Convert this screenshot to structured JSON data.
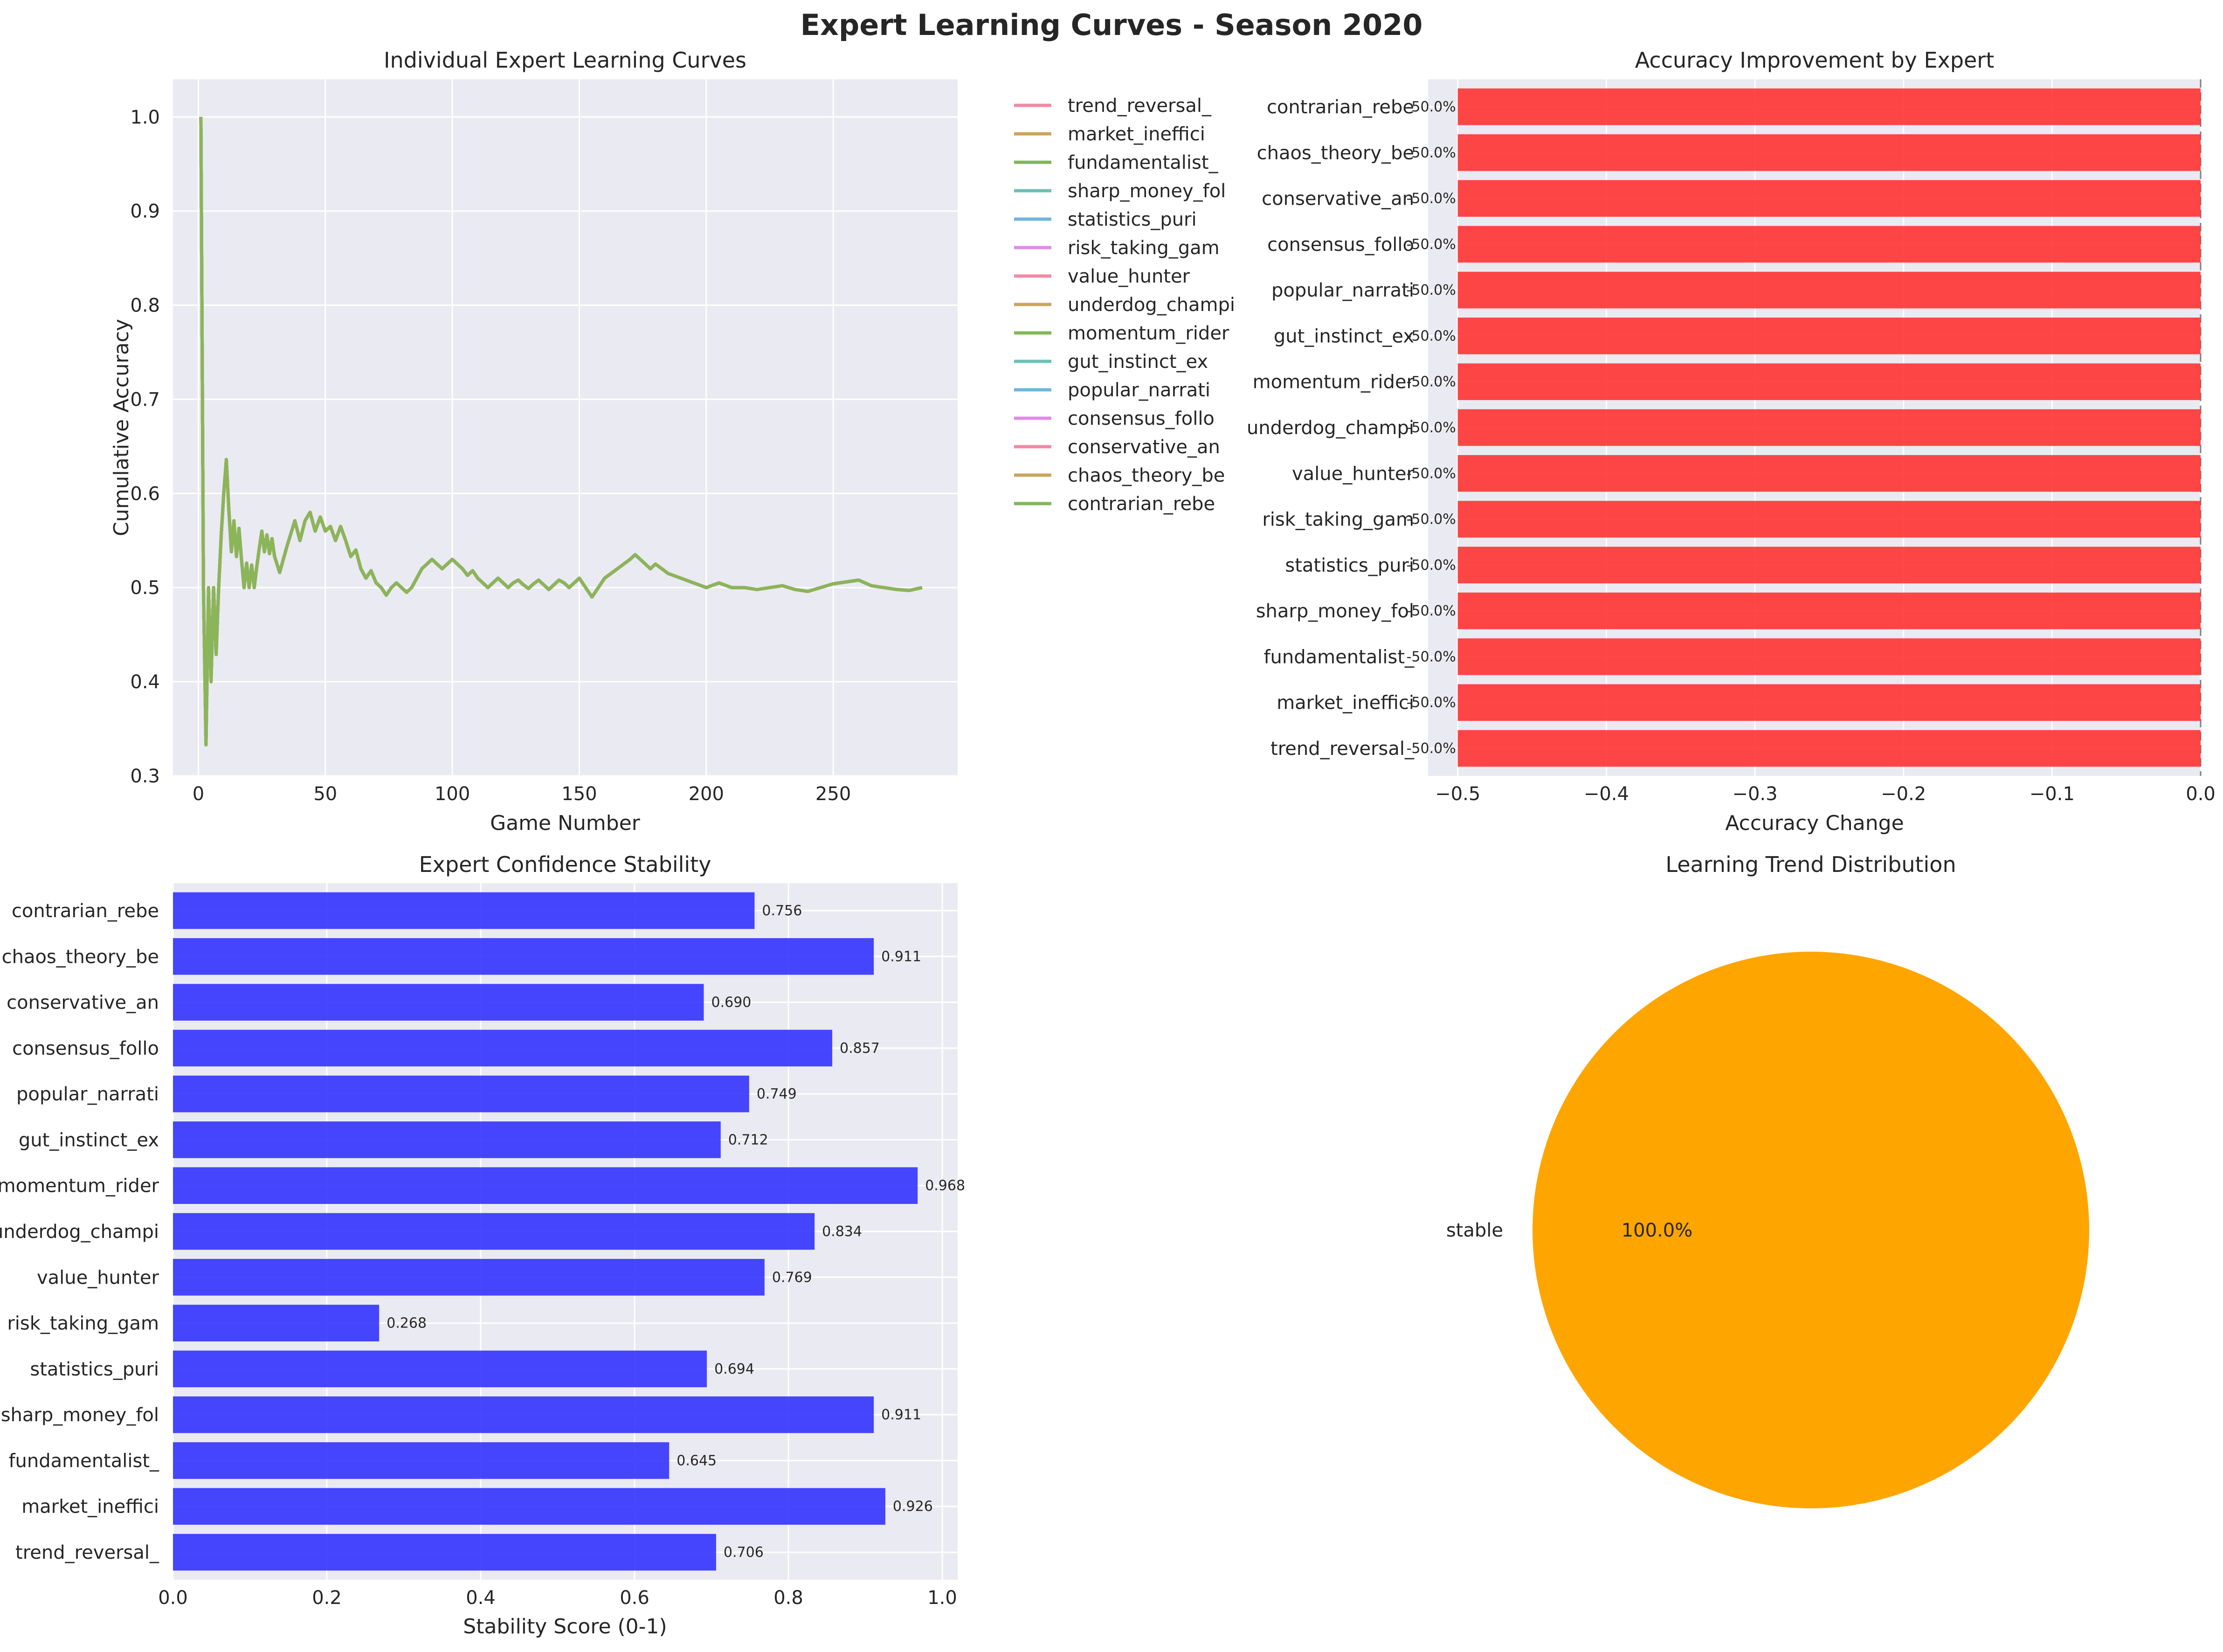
{
  "suptitle": "Expert Learning Curves - Season 2020",
  "colors": {
    "axes_bg": "#EAEAF2",
    "grid": "#FFFFFF",
    "negative_bar": "#FF3333",
    "stability_bar": "#3333FF",
    "pie_stable": "#FFA500",
    "zero_line": "#808080",
    "line_palette": [
      "#F28AA3",
      "#C8A65C",
      "#7FB857",
      "#6CC0B5",
      "#70B5DC",
      "#E28BE8"
    ]
  },
  "chart_data": [
    {
      "type": "line",
      "title": "Individual Expert Learning Curves",
      "xlabel": "Game Number",
      "ylabel": "Cumulative Accuracy",
      "xlim": [
        -10,
        299
      ],
      "ylim": [
        0.3,
        1.04
      ],
      "xticks": [
        0,
        50,
        100,
        150,
        200,
        250
      ],
      "yticks": [
        0.3,
        0.4,
        0.5,
        0.6,
        0.7,
        0.8,
        0.9,
        1.0
      ],
      "grid": true,
      "legend_position": "outside-right",
      "series_names": [
        "trend_reversal_",
        "market_ineffici",
        "fundamentalist_",
        "sharp_money_fol",
        "statistics_puri",
        "risk_taking_gam",
        "value_hunter",
        "underdog_champi",
        "momentum_rider",
        "gut_instinct_ex",
        "popular_narrati",
        "consensus_follo",
        "conservative_an",
        "chaos_theory_be",
        "contrarian_rebe"
      ],
      "series_colors": [
        "#F28AA3",
        "#C8A65C",
        "#7FB857",
        "#6CC0B5",
        "#70B5DC",
        "#E28BE8",
        "#F28AA3",
        "#C8A65C",
        "#7FB857",
        "#6CC0B5",
        "#70B5DC",
        "#E28BE8",
        "#F28AA3",
        "#C8A65C",
        "#7FB857"
      ],
      "note_series_overlap": "all series identical",
      "x": [
        1,
        2,
        3,
        4,
        5,
        6,
        7,
        8,
        9,
        10,
        11,
        12,
        13,
        14,
        15,
        16,
        17,
        18,
        19,
        20,
        21,
        22,
        23,
        24,
        25,
        26,
        27,
        28,
        29,
        30,
        32,
        35,
        38,
        40,
        42,
        44,
        46,
        48,
        50,
        52,
        54,
        56,
        58,
        60,
        62,
        64,
        66,
        68,
        70,
        72,
        74,
        76,
        78,
        80,
        82,
        84,
        86,
        88,
        90,
        92,
        94,
        96,
        98,
        100,
        102,
        104,
        106,
        108,
        110,
        112,
        114,
        116,
        118,
        120,
        122,
        124,
        126,
        128,
        130,
        132,
        134,
        136,
        138,
        140,
        142,
        144,
        146,
        148,
        150,
        155,
        160,
        165,
        170,
        172,
        174,
        176,
        178,
        180,
        185,
        190,
        195,
        200,
        205,
        210,
        215,
        220,
        225,
        230,
        235,
        240,
        245,
        250,
        255,
        260,
        265,
        270,
        275,
        280,
        285
      ],
      "y": [
        1.0,
        0.5,
        0.333,
        0.5,
        0.4,
        0.5,
        0.429,
        0.5,
        0.556,
        0.6,
        0.636,
        0.583,
        0.538,
        0.571,
        0.533,
        0.563,
        0.529,
        0.5,
        0.526,
        0.5,
        0.524,
        0.5,
        0.522,
        0.542,
        0.56,
        0.538,
        0.556,
        0.536,
        0.552,
        0.533,
        0.516,
        0.545,
        0.571,
        0.55,
        0.571,
        0.58,
        0.56,
        0.575,
        0.56,
        0.565,
        0.55,
        0.565,
        0.55,
        0.533,
        0.54,
        0.52,
        0.51,
        0.518,
        0.505,
        0.5,
        0.492,
        0.5,
        0.505,
        0.5,
        0.495,
        0.5,
        0.51,
        0.52,
        0.525,
        0.53,
        0.525,
        0.52,
        0.525,
        0.53,
        0.525,
        0.52,
        0.513,
        0.518,
        0.51,
        0.505,
        0.5,
        0.505,
        0.51,
        0.505,
        0.5,
        0.505,
        0.508,
        0.503,
        0.499,
        0.504,
        0.508,
        0.503,
        0.498,
        0.503,
        0.508,
        0.505,
        0.5,
        0.505,
        0.51,
        0.49,
        0.51,
        0.52,
        0.53,
        0.535,
        0.53,
        0.525,
        0.52,
        0.525,
        0.515,
        0.51,
        0.505,
        0.5,
        0.505,
        0.5,
        0.5,
        0.498,
        0.5,
        0.502,
        0.498,
        0.496,
        0.5,
        0.504,
        0.506,
        0.508,
        0.502,
        0.5,
        0.498,
        0.497,
        0.5
      ]
    },
    {
      "type": "bar",
      "orientation": "horizontal",
      "title": "Accuracy Improvement by Expert",
      "xlabel": "Accuracy Change",
      "ylabel": "",
      "xlim": [
        -0.52,
        0.0
      ],
      "xticks": [
        -0.5,
        -0.4,
        -0.3,
        -0.2,
        -0.1,
        0.0
      ],
      "xtick_labels": [
        "−0.5",
        "−0.4",
        "−0.3",
        "−0.2",
        "−0.1",
        "0.0"
      ],
      "grid": true,
      "categories": [
        "trend_reversal_",
        "market_ineffici",
        "fundamentalist_",
        "sharp_money_fol",
        "statistics_puri",
        "risk_taking_gam",
        "value_hunter",
        "underdog_champi",
        "momentum_rider",
        "gut_instinct_ex",
        "popular_narrati",
        "consensus_follo",
        "conservative_an",
        "chaos_theory_be",
        "contrarian_rebe"
      ],
      "values": [
        -0.5,
        -0.5,
        -0.5,
        -0.5,
        -0.5,
        -0.5,
        -0.5,
        -0.5,
        -0.5,
        -0.5,
        -0.5,
        -0.5,
        -0.5,
        -0.5,
        -0.5
      ],
      "data_labels": [
        "-50.0%",
        "-50.0%",
        "-50.0%",
        "-50.0%",
        "-50.0%",
        "-50.0%",
        "-50.0%",
        "-50.0%",
        "-50.0%",
        "-50.0%",
        "-50.0%",
        "-50.0%",
        "-50.0%",
        "-50.0%",
        "-50.0%"
      ]
    },
    {
      "type": "bar",
      "orientation": "horizontal",
      "title": "Expert Confidence Stability",
      "xlabel": "Stability Score (0-1)",
      "ylabel": "",
      "xlim": [
        0.0,
        1.02
      ],
      "xticks": [
        0.0,
        0.2,
        0.4,
        0.6,
        0.8,
        1.0
      ],
      "xtick_labels": [
        "0.0",
        "0.2",
        "0.4",
        "0.6",
        "0.8",
        "1.0"
      ],
      "grid": true,
      "categories": [
        "trend_reversal_",
        "market_ineffici",
        "fundamentalist_",
        "sharp_money_fol",
        "statistics_puri",
        "risk_taking_gam",
        "value_hunter",
        "underdog_champi",
        "momentum_rider",
        "gut_instinct_ex",
        "popular_narrati",
        "consensus_follo",
        "conservative_an",
        "chaos_theory_be",
        "contrarian_rebe"
      ],
      "values": [
        0.706,
        0.926,
        0.645,
        0.911,
        0.694,
        0.268,
        0.769,
        0.834,
        0.968,
        0.712,
        0.749,
        0.857,
        0.69,
        0.911,
        0.756
      ],
      "data_labels": [
        "0.706",
        "0.926",
        "0.645",
        "0.911",
        "0.694",
        "0.268",
        "0.769",
        "0.834",
        "0.968",
        "0.712",
        "0.749",
        "0.857",
        "0.690",
        "0.911",
        "0.756"
      ]
    },
    {
      "type": "pie",
      "title": "Learning Trend Distribution",
      "labels": [
        "stable"
      ],
      "values": [
        100.0
      ],
      "pct_labels": [
        "100.0%"
      ]
    }
  ]
}
